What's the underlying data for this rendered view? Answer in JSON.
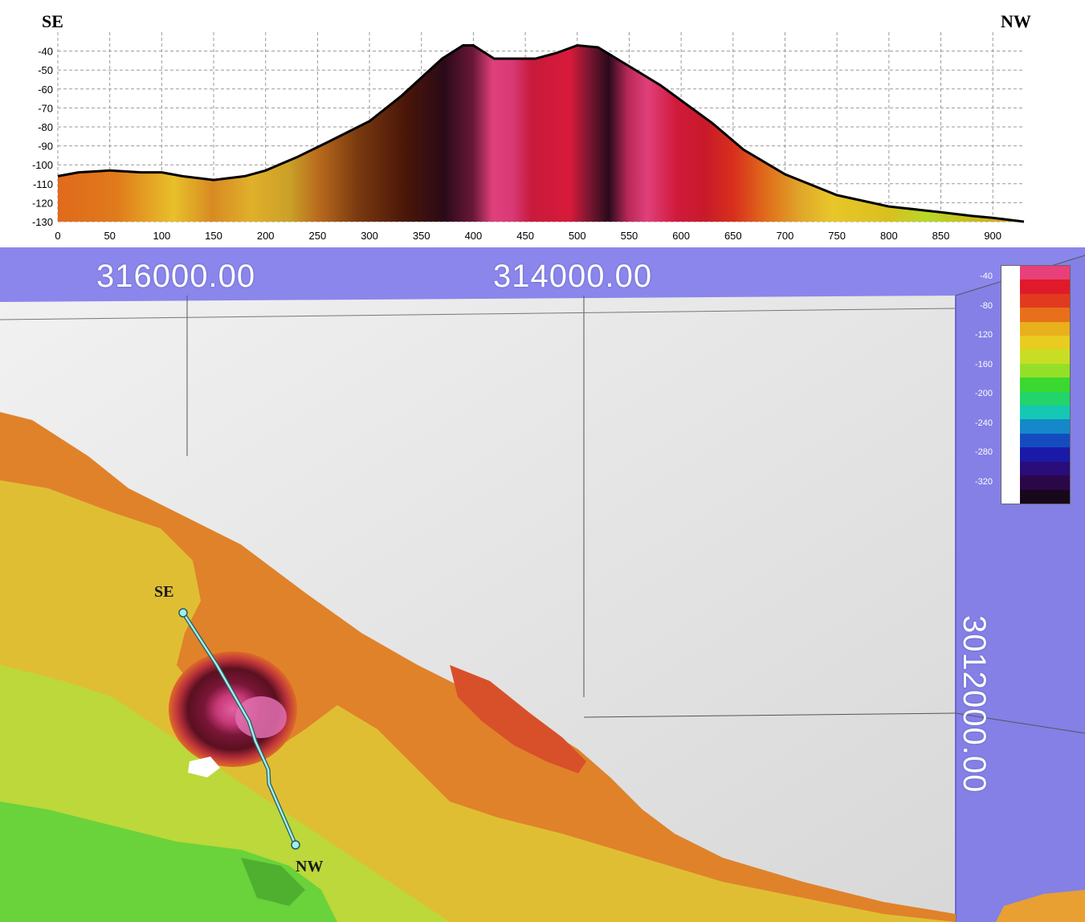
{
  "profile": {
    "left_label": "SE",
    "right_label": "NW",
    "y_ticks": [
      "-40",
      "-50",
      "-60",
      "-70",
      "-80",
      "-90",
      "-100",
      "-110",
      "-120",
      "-130"
    ],
    "x_ticks": [
      "0",
      "50",
      "100",
      "150",
      "200",
      "250",
      "300",
      "350",
      "400",
      "450",
      "500",
      "550",
      "600",
      "650",
      "700",
      "750",
      "800",
      "850",
      "900"
    ]
  },
  "chart_data": {
    "type": "area",
    "xlim": [
      0,
      930
    ],
    "ylim": [
      -130,
      -30
    ],
    "grid": true,
    "x": [
      0,
      20,
      50,
      80,
      100,
      120,
      150,
      180,
      200,
      230,
      260,
      300,
      330,
      350,
      370,
      390,
      400,
      420,
      440,
      460,
      480,
      500,
      520,
      550,
      580,
      600,
      630,
      660,
      700,
      750,
      800,
      850,
      880,
      900,
      930
    ],
    "y": [
      -106,
      -104,
      -103,
      -104,
      -104,
      -106,
      -108,
      -106,
      -103,
      -96,
      -88,
      -77,
      -64,
      -54,
      -44,
      -37,
      -37,
      -44,
      -44,
      -44,
      -41,
      -37,
      -38,
      -48,
      -58,
      -66,
      -78,
      -92,
      -105,
      -116,
      -122,
      -125,
      -127,
      -128,
      -130
    ]
  },
  "map": {
    "coord_x1": "316000.00",
    "coord_x2": "314000.00",
    "coord_y": "3012000.00",
    "se_label": "SE",
    "nw_label": "NW"
  },
  "legend": {
    "ticks": [
      "-40",
      "-80",
      "-120",
      "-160",
      "-200",
      "-240",
      "-280",
      "-320"
    ],
    "colors": [
      "#e8407a",
      "#e01a2a",
      "#e23a1e",
      "#e8701a",
      "#e8b01c",
      "#e8cc20",
      "#c8de24",
      "#94e028",
      "#3ad830",
      "#22d46a",
      "#14c8b4",
      "#1488c8",
      "#144cc0",
      "#1a1aa8",
      "#2a0c7a",
      "#2a0848",
      "#18081c"
    ]
  }
}
